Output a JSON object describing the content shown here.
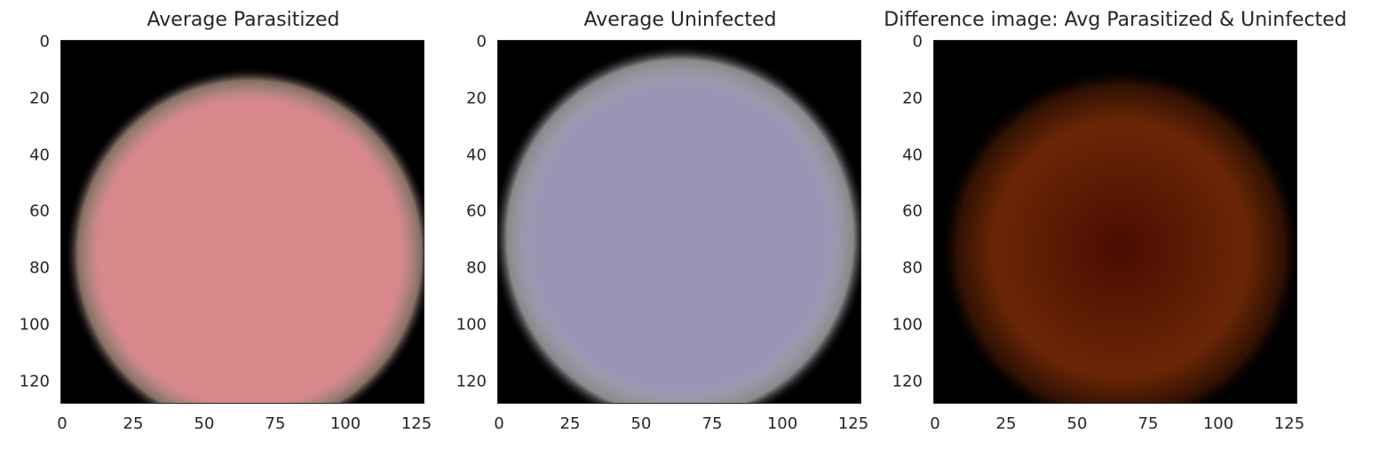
{
  "panels": [
    {
      "title": "Average Parasitized",
      "fill_color": "#d8878b",
      "edge_color": "#f0c8b8",
      "y_ticks": [
        "0",
        "20",
        "40",
        "60",
        "80",
        "100",
        "120"
      ],
      "x_ticks": [
        "0",
        "25",
        "50",
        "75",
        "100",
        "125"
      ]
    },
    {
      "title": "Average Uninfected",
      "fill_color": "#9b95b5",
      "edge_color": "#e6e0e8",
      "y_ticks": [
        "0",
        "20",
        "40",
        "60",
        "80",
        "100",
        "120"
      ],
      "x_ticks": [
        "0",
        "25",
        "50",
        "75",
        "100",
        "125"
      ]
    },
    {
      "title": "Difference image: Avg Parasitized & Uninfected",
      "fill_color": "#4a0c02",
      "edge_color": "#6a2606",
      "y_ticks": [
        "0",
        "20",
        "40",
        "60",
        "80",
        "100",
        "120"
      ],
      "x_ticks": [
        "0",
        "25",
        "50",
        "75",
        "100",
        "125"
      ]
    }
  ]
}
